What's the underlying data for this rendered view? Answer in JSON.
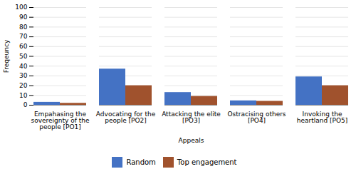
{
  "chart_data": {
    "type": "bar",
    "categories": [
      "Empahasing the\nsovereignty of the\npeople [PO1]",
      "Advocating for the\npeople [PO2]",
      "Attacking the elite\n[PO3]",
      "Ostracising others\n[PO4]",
      "Invoking the\nheartland [PO5]"
    ],
    "series": [
      {
        "name": "Random",
        "color": "#4472C4",
        "values": [
          3,
          37,
          13,
          4.5,
          29
        ]
      },
      {
        "name": "Top engagement",
        "color": "#A0522D",
        "values": [
          2,
          20,
          9,
          4,
          20
        ]
      }
    ],
    "xlabel": "Appeals",
    "ylabel": "Freqeuncy",
    "ylim": [
      0,
      100
    ],
    "yticks": [
      0,
      10,
      20,
      30,
      40,
      50,
      60,
      70,
      80,
      90,
      100
    ],
    "grid": true,
    "legend": "bottom"
  }
}
